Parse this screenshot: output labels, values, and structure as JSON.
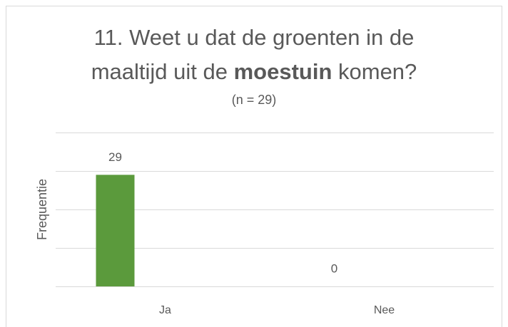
{
  "chart_data": {
    "type": "bar",
    "title": [
      "11. Weet u dat de groenten in de",
      "maaltijd uit de ",
      "moestuin",
      " komen?"
    ],
    "subtitle": "(n = 29)",
    "y_label": "Frequentie",
    "categories": [
      "Ja",
      "Nee"
    ],
    "values": [
      29,
      0
    ],
    "color": "#5b9a3c",
    "ylim": [
      0,
      40
    ],
    "yticks": [
      0,
      10,
      20,
      30,
      40
    ],
    "grid": true
  }
}
